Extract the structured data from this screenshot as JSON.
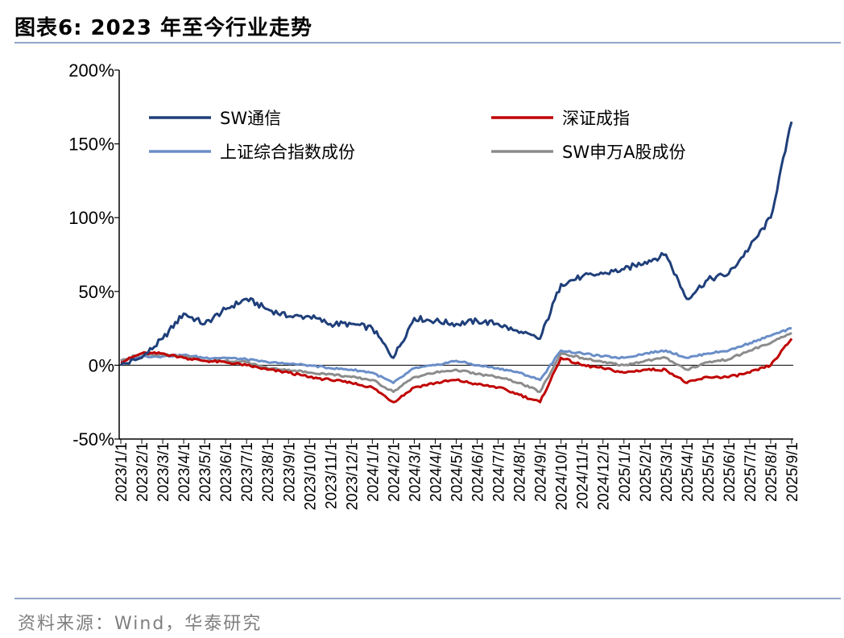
{
  "header": {
    "title": "图表6:  2023 年至今行业走势"
  },
  "footer": {
    "source": "资料来源：Wind，华泰研究"
  },
  "colors": {
    "sw_tongxin": "#1f3f7a",
    "shenzheng": "#c00000",
    "shangzheng": "#6a8ec8",
    "sw_a": "#8c8c8c",
    "rule": "#8fa6c8"
  },
  "chart_data": {
    "type": "line",
    "title": "",
    "xlabel": "",
    "ylabel": "",
    "ylim": [
      -50,
      200
    ],
    "yticks": [
      -50,
      0,
      50,
      100,
      150,
      200
    ],
    "ytick_labels": [
      "-50%",
      "0%",
      "50%",
      "100%",
      "150%",
      "200%"
    ],
    "categories": [
      "2023/1/1",
      "2023/2/1",
      "2023/3/1",
      "2023/4/1",
      "2023/5/1",
      "2023/6/1",
      "2023/7/1",
      "2023/8/1",
      "2023/9/1",
      "2023/10/1",
      "2023/11/1",
      "2023/12/1",
      "2024/1/1",
      "2024/2/1",
      "2024/3/1",
      "2024/4/1",
      "2024/5/1",
      "2024/6/1",
      "2024/7/1",
      "2024/8/1",
      "2024/9/1",
      "2024/10/1",
      "2024/11/1",
      "2024/12/1",
      "2025/1/1",
      "2025/2/1",
      "2025/3/1",
      "2025/4/1",
      "2025/5/1",
      "2025/6/1",
      "2025/7/1",
      "2025/8/1",
      "2025/9/1"
    ],
    "legend_position": "top",
    "series": [
      {
        "name": "SW通信",
        "values": [
          0,
          5,
          18,
          35,
          28,
          38,
          45,
          38,
          33,
          33,
          28,
          28,
          25,
          5,
          32,
          30,
          28,
          30,
          28,
          22,
          18,
          55,
          60,
          62,
          65,
          70,
          75,
          45,
          58,
          62,
          80,
          100,
          165
        ]
      },
      {
        "name": "深证成指",
        "values": [
          2,
          8,
          8,
          5,
          3,
          2,
          0,
          -3,
          -5,
          -8,
          -10,
          -12,
          -15,
          -25,
          -15,
          -12,
          -10,
          -13,
          -15,
          -20,
          -25,
          5,
          0,
          -2,
          -5,
          -3,
          -3,
          -12,
          -8,
          -8,
          -5,
          0,
          18
        ]
      },
      {
        "name": "上证综合指数成份",
        "values": [
          3,
          6,
          6,
          7,
          5,
          5,
          4,
          2,
          1,
          0,
          -2,
          -3,
          -5,
          -12,
          -2,
          0,
          3,
          0,
          -2,
          -5,
          -10,
          10,
          8,
          6,
          5,
          8,
          10,
          5,
          8,
          10,
          15,
          20,
          25
        ]
      },
      {
        "name": "SW申万A股成份",
        "values": [
          3,
          8,
          7,
          6,
          3,
          3,
          2,
          -2,
          -3,
          -5,
          -6,
          -8,
          -10,
          -18,
          -8,
          -5,
          -3,
          -6,
          -8,
          -12,
          -18,
          8,
          5,
          2,
          0,
          3,
          5,
          -3,
          2,
          4,
          10,
          15,
          22
        ]
      }
    ]
  }
}
